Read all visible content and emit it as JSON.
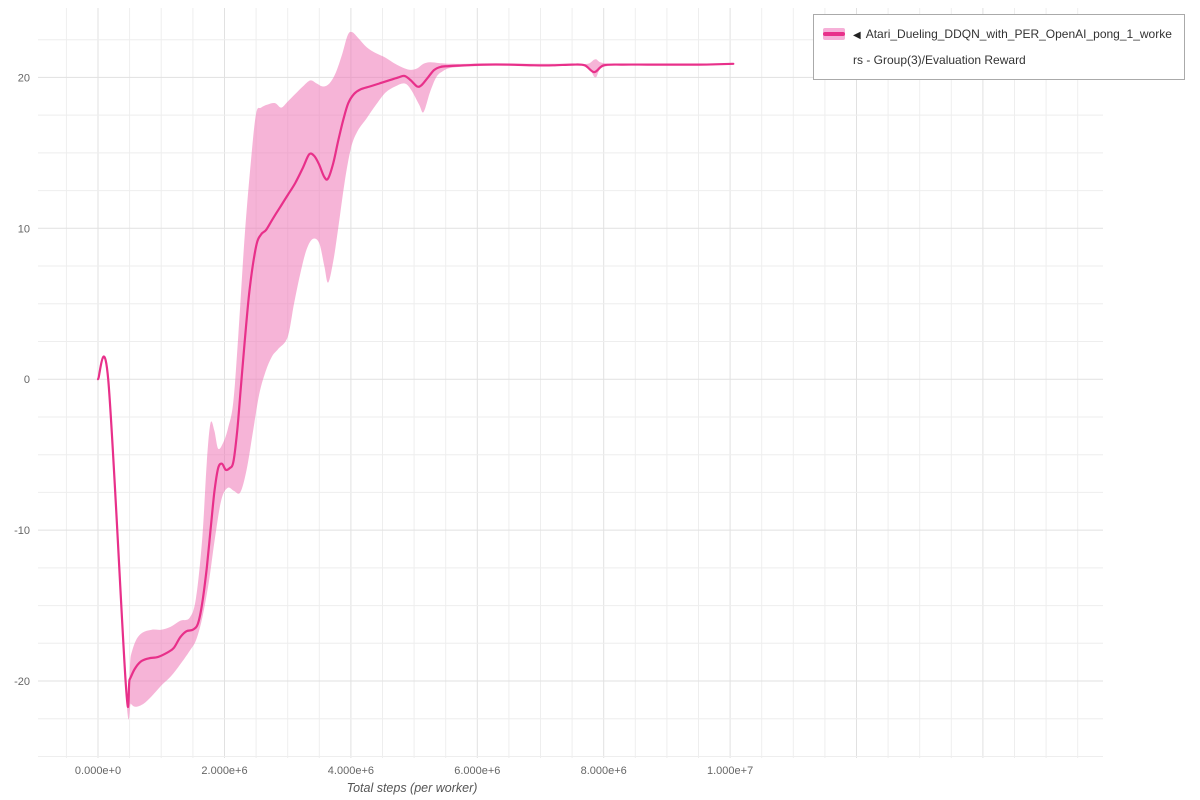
{
  "legend": {
    "icon": "◀",
    "label": "Atari_Dueling_DDQN_with_PER_OpenAI_pong_1_workers - Group(3)/Evaluation Reward"
  },
  "axes": {
    "x_title": "Total steps (per worker)",
    "x_ticks": [
      "0.000e+0",
      "2.000e+6",
      "4.000e+6",
      "6.000e+6",
      "8.000e+6",
      "1.000e+7"
    ],
    "x_tick_values": [
      0,
      2000000,
      4000000,
      6000000,
      8000000,
      10000000
    ],
    "y_ticks": [
      "-20",
      "-10",
      "0",
      "10",
      "20"
    ],
    "y_tick_values": [
      -20,
      -10,
      0,
      10,
      20
    ]
  },
  "figure": {
    "background": "#ffffff",
    "grid_minor_color": "#eeeeee",
    "grid_major_color": "#e1e1e1",
    "tick_label_color": "#666666"
  },
  "chart_data": {
    "type": "line",
    "title": "",
    "xlabel": "Total steps (per worker)",
    "ylabel": "",
    "xlim": [
      -950000,
      15900000
    ],
    "ylim": [
      -25.1,
      24.6
    ],
    "grid": true,
    "legend_position": "top-right",
    "x_minor_step": 500000,
    "x_major_step": 2000000,
    "y_minor_step": 2.5,
    "y_major_step": 10,
    "series": [
      {
        "name": "Atari_Dueling_DDQN_with_PER_OpenAI_pong_1_workers - Group(3)/Evaluation Reward",
        "color": "#e8308a",
        "band_color": "#ee77b6",
        "band_opacity": 0.55,
        "points": [
          [
            0,
            0
          ],
          [
            160000,
            0
          ],
          [
            440000,
            -20.3
          ],
          [
            500000,
            -19.9
          ],
          [
            580000,
            -19.2
          ],
          [
            680000,
            -18.7
          ],
          [
            800000,
            -18.5
          ],
          [
            950000,
            -18.4
          ],
          [
            1100000,
            -18.1
          ],
          [
            1200000,
            -17.8
          ],
          [
            1300000,
            -17.1
          ],
          [
            1400000,
            -16.7
          ],
          [
            1500000,
            -16.6
          ],
          [
            1580000,
            -16.2
          ],
          [
            1650000,
            -14.8
          ],
          [
            1720000,
            -12.5
          ],
          [
            1780000,
            -10.0
          ],
          [
            1840000,
            -7.5
          ],
          [
            1900000,
            -5.9
          ],
          [
            1960000,
            -5.6
          ],
          [
            2020000,
            -6.0
          ],
          [
            2080000,
            -5.9
          ],
          [
            2140000,
            -5.5
          ],
          [
            2200000,
            -3.5
          ],
          [
            2260000,
            -0.5
          ],
          [
            2320000,
            2.5
          ],
          [
            2400000,
            6.0
          ],
          [
            2500000,
            8.8
          ],
          [
            2580000,
            9.6
          ],
          [
            2660000,
            9.9
          ],
          [
            2760000,
            10.6
          ],
          [
            2880000,
            11.4
          ],
          [
            3000000,
            12.2
          ],
          [
            3120000,
            13.0
          ],
          [
            3240000,
            14.0
          ],
          [
            3340000,
            14.9
          ],
          [
            3420000,
            14.8
          ],
          [
            3500000,
            14.2
          ],
          [
            3580000,
            13.4
          ],
          [
            3640000,
            13.3
          ],
          [
            3720000,
            14.3
          ],
          [
            3800000,
            15.8
          ],
          [
            3880000,
            17.2
          ],
          [
            3960000,
            18.3
          ],
          [
            4050000,
            18.9
          ],
          [
            4150000,
            19.2
          ],
          [
            4300000,
            19.4
          ],
          [
            4450000,
            19.6
          ],
          [
            4600000,
            19.8
          ],
          [
            4750000,
            20.0
          ],
          [
            4850000,
            20.1
          ],
          [
            4950000,
            19.8
          ],
          [
            5050000,
            19.4
          ],
          [
            5120000,
            19.5
          ],
          [
            5220000,
            20.0
          ],
          [
            5320000,
            20.5
          ],
          [
            5420000,
            20.7
          ],
          [
            5550000,
            20.75
          ],
          [
            5800000,
            20.8
          ],
          [
            6100000,
            20.85
          ],
          [
            6500000,
            20.85
          ],
          [
            6900000,
            20.8
          ],
          [
            7200000,
            20.8
          ],
          [
            7500000,
            20.85
          ],
          [
            7700000,
            20.8
          ],
          [
            7850000,
            20.35
          ],
          [
            8000000,
            20.8
          ],
          [
            8300000,
            20.85
          ],
          [
            8700000,
            20.85
          ],
          [
            9100000,
            20.85
          ],
          [
            9500000,
            20.85
          ],
          [
            10050000,
            20.9
          ]
        ],
        "band_upper": [
          [
            0,
            0
          ],
          [
            160000,
            0
          ],
          [
            440000,
            -19.8
          ],
          [
            520000,
            -18.3
          ],
          [
            600000,
            -17.3
          ],
          [
            700000,
            -16.8
          ],
          [
            850000,
            -16.6
          ],
          [
            1000000,
            -16.6
          ],
          [
            1150000,
            -16.4
          ],
          [
            1300000,
            -16.0
          ],
          [
            1450000,
            -15.8
          ],
          [
            1550000,
            -14.5
          ],
          [
            1650000,
            -10.5
          ],
          [
            1720000,
            -5.5
          ],
          [
            1780000,
            -2.9
          ],
          [
            1840000,
            -3.4
          ],
          [
            1900000,
            -4.6
          ],
          [
            1980000,
            -4.2
          ],
          [
            2060000,
            -3.2
          ],
          [
            2140000,
            -1.5
          ],
          [
            2220000,
            3.0
          ],
          [
            2320000,
            9.5
          ],
          [
            2420000,
            14.5
          ],
          [
            2500000,
            17.6
          ],
          [
            2580000,
            18.0
          ],
          [
            2680000,
            18.2
          ],
          [
            2800000,
            18.3
          ],
          [
            2900000,
            18.0
          ],
          [
            3000000,
            18.4
          ],
          [
            3120000,
            18.9
          ],
          [
            3240000,
            19.4
          ],
          [
            3360000,
            19.8
          ],
          [
            3460000,
            19.6
          ],
          [
            3560000,
            19.4
          ],
          [
            3660000,
            19.6
          ],
          [
            3760000,
            20.3
          ],
          [
            3860000,
            21.5
          ],
          [
            3950000,
            22.8
          ],
          [
            4020000,
            23.0
          ],
          [
            4120000,
            22.6
          ],
          [
            4250000,
            22.0
          ],
          [
            4400000,
            21.6
          ],
          [
            4550000,
            21.3
          ],
          [
            4700000,
            20.9
          ],
          [
            4850000,
            20.6
          ],
          [
            4950000,
            20.5
          ],
          [
            5050000,
            20.6
          ],
          [
            5150000,
            20.9
          ],
          [
            5250000,
            21.0
          ],
          [
            5400000,
            20.95
          ],
          [
            5600000,
            20.9
          ],
          [
            6000000,
            20.9
          ],
          [
            6500000,
            20.9
          ],
          [
            7000000,
            20.9
          ],
          [
            7500000,
            20.9
          ],
          [
            7750000,
            20.9
          ],
          [
            7870000,
            21.2
          ],
          [
            8000000,
            20.95
          ],
          [
            8500000,
            20.9
          ],
          [
            9000000,
            20.9
          ],
          [
            9500000,
            20.9
          ],
          [
            10050000,
            20.9
          ]
        ],
        "band_lower": [
          [
            0,
            0
          ],
          [
            160000,
            0
          ],
          [
            440000,
            -20.8
          ],
          [
            520000,
            -21.5
          ],
          [
            600000,
            -21.7
          ],
          [
            720000,
            -21.5
          ],
          [
            850000,
            -21.0
          ],
          [
            1000000,
            -20.3
          ],
          [
            1150000,
            -19.7
          ],
          [
            1300000,
            -18.9
          ],
          [
            1450000,
            -18.0
          ],
          [
            1550000,
            -17.3
          ],
          [
            1650000,
            -15.8
          ],
          [
            1750000,
            -13.5
          ],
          [
            1850000,
            -10.5
          ],
          [
            1950000,
            -8.0
          ],
          [
            2050000,
            -7.2
          ],
          [
            2150000,
            -7.4
          ],
          [
            2250000,
            -7.5
          ],
          [
            2350000,
            -6.0
          ],
          [
            2450000,
            -3.5
          ],
          [
            2550000,
            -1.0
          ],
          [
            2650000,
            0.5
          ],
          [
            2750000,
            1.5
          ],
          [
            2850000,
            2.0
          ],
          [
            3000000,
            2.8
          ],
          [
            3100000,
            5.0
          ],
          [
            3200000,
            7.0
          ],
          [
            3300000,
            8.6
          ],
          [
            3400000,
            9.3
          ],
          [
            3500000,
            9.0
          ],
          [
            3580000,
            7.5
          ],
          [
            3640000,
            6.4
          ],
          [
            3720000,
            7.8
          ],
          [
            3800000,
            10.0
          ],
          [
            3900000,
            13.0
          ],
          [
            4000000,
            15.3
          ],
          [
            4100000,
            16.4
          ],
          [
            4250000,
            17.3
          ],
          [
            4400000,
            18.2
          ],
          [
            4550000,
            19.0
          ],
          [
            4700000,
            19.4
          ],
          [
            4850000,
            19.6
          ],
          [
            4950000,
            19.2
          ],
          [
            5080000,
            18.2
          ],
          [
            5150000,
            17.7
          ],
          [
            5250000,
            19.0
          ],
          [
            5350000,
            20.0
          ],
          [
            5450000,
            20.4
          ],
          [
            5600000,
            20.65
          ],
          [
            6000000,
            20.75
          ],
          [
            6500000,
            20.8
          ],
          [
            7000000,
            20.75
          ],
          [
            7500000,
            20.8
          ],
          [
            7750000,
            20.7
          ],
          [
            7870000,
            20.0
          ],
          [
            8000000,
            20.7
          ],
          [
            8500000,
            20.8
          ],
          [
            9000000,
            20.8
          ],
          [
            9500000,
            20.8
          ],
          [
            10050000,
            20.85
          ]
        ]
      }
    ]
  }
}
